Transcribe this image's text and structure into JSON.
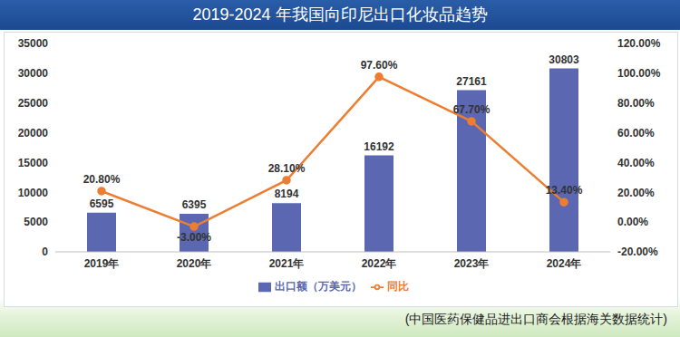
{
  "chart_data": {
    "type": "bar",
    "title": "2019-2024 年我国向印尼出口化妆品趋势",
    "categories": [
      "2019年",
      "2020年",
      "2021年",
      "2022年",
      "2023年",
      "2024年"
    ],
    "series": [
      {
        "name": "出口额（万美元）",
        "type": "bar",
        "color": "#5b67b0",
        "values": [
          6595,
          6395,
          8194,
          16192,
          27161,
          30803
        ],
        "data_labels": true
      },
      {
        "name": "同比",
        "type": "line",
        "color": "#ed7d31",
        "axis": "y2",
        "marker": "circle",
        "values": [
          20.8,
          -3,
          28.1,
          97.6,
          67.7,
          13.4
        ],
        "value_labels": [
          "20.80%",
          "-3.00%",
          "28.10%",
          "97.60%",
          "67.70%",
          "13.40%"
        ],
        "data_labels": true
      }
    ],
    "ylim": [
      0,
      35000
    ],
    "yticks": [
      0,
      5000,
      10000,
      15000,
      20000,
      25000,
      30000,
      35000
    ],
    "y2lim": [
      -20,
      120
    ],
    "y2ticks": [
      {
        "value": -20,
        "label": "-20.00%"
      },
      {
        "value": 0,
        "label": "0.00%"
      },
      {
        "value": 20,
        "label": "20.00%"
      },
      {
        "value": 40,
        "label": "40.00%"
      },
      {
        "value": 60,
        "label": "60.00%"
      },
      {
        "value": 80,
        "label": "80.00%"
      },
      {
        "value": 100,
        "label": "100.00%"
      },
      {
        "value": 120,
        "label": "120.00%"
      }
    ],
    "grid": false,
    "legend": "bottom",
    "annotations": [
      "(中国医药保健品进出口商会根据海关数据统计)"
    ]
  }
}
